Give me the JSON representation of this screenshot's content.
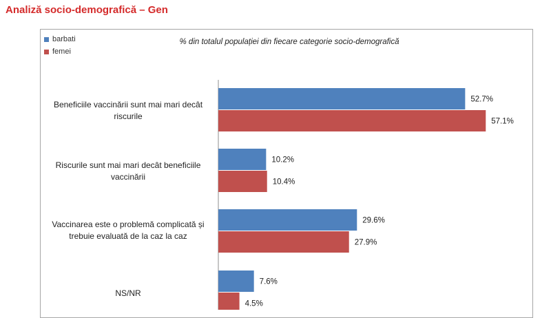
{
  "page": {
    "title": "Analiză socio-demografică – Gen"
  },
  "chart_data": {
    "type": "bar",
    "orientation": "horizontal",
    "title": "% din totalul populației din fiecare categorie socio-demografică",
    "xlabel": "",
    "ylabel": "",
    "xlim": [
      0,
      70
    ],
    "grid": false,
    "legend_position": "top-left",
    "categories": [
      "Beneficiile vaccinării sunt mai mari decât riscurile",
      "Riscurile sunt mai mari decât beneficiile vaccinării",
      "Vaccinarea este o problemă complicată și trebuie evaluată de la caz la caz",
      "NS/NR"
    ],
    "series": [
      {
        "name": "barbati",
        "color": "#4f81bd",
        "values": [
          52.7,
          10.2,
          29.6,
          7.6
        ],
        "labels": [
          "52.7%",
          "10.2%",
          "29.6%",
          "7.6%"
        ]
      },
      {
        "name": "femei",
        "color": "#c0504d",
        "values": [
          57.1,
          10.4,
          27.9,
          4.5
        ],
        "labels": [
          "57.1%",
          "10.4%",
          "27.9%",
          "4.5%"
        ]
      }
    ]
  }
}
